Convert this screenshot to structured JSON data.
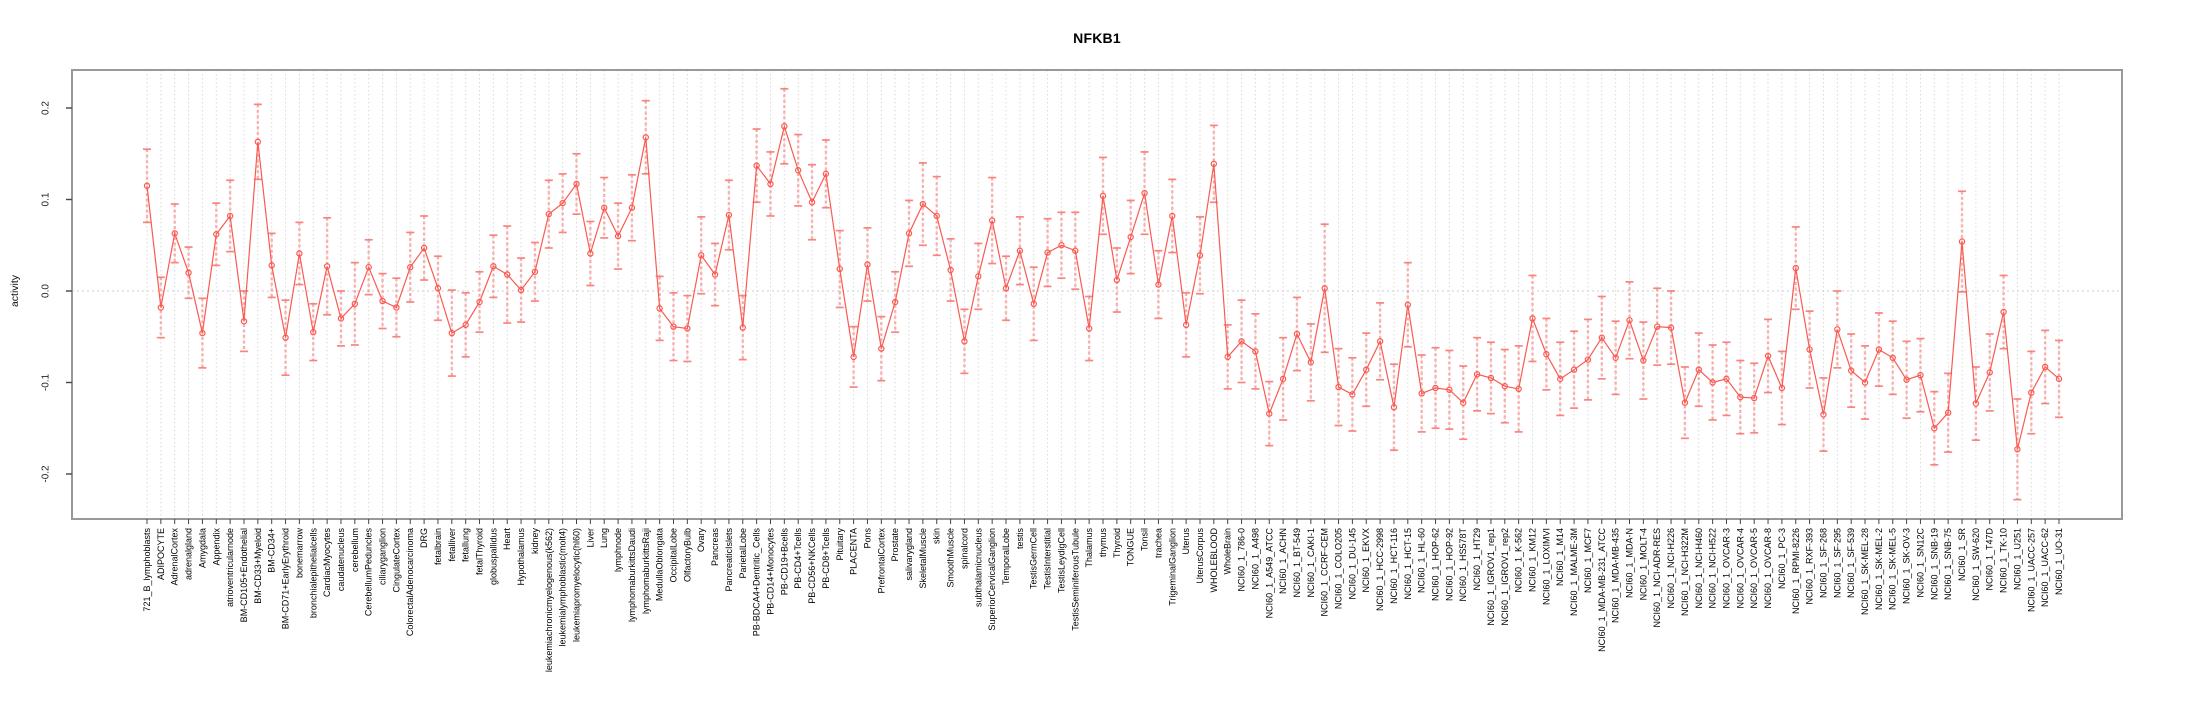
{
  "chart_data": {
    "type": "line",
    "title": "NFKB1",
    "ylabel": "activity",
    "xlabel": "",
    "legend": "none",
    "grid": "dashed vertical line per category; dotted horizontal line at 0",
    "ylim": [
      -0.25,
      0.235
    ],
    "yticks": [
      -0.2,
      -0.1,
      0.0,
      0.1,
      0.2
    ],
    "ytick_labels": [
      "-0.2",
      "-0.1",
      "0.0",
      "0.1",
      "0.2"
    ],
    "marker": "open-circle",
    "series_color": "#fa5a52",
    "errorbar_color": "#f87873",
    "gridline_color": "#d9d9d9",
    "box_color": "#999999",
    "categories": [
      "721_B_lymphoblasts",
      "ADIPOCYTE",
      "AdrenalCortex",
      "adrenalgland",
      "Amygdala",
      "Appendix",
      "atrioventricularnode",
      "BM-CD105+Endothelial",
      "BM-CD33+Myeloid",
      "BM-CD34+",
      "BM-CD71+EarlyErythroid",
      "bonemarrow",
      "bronchialepithelialcells",
      "CardiacMyocytes",
      "caudatenucleus",
      "cerebellum",
      "CerebellumPeduncles",
      "ciliaryganglion",
      "CingulateCortex",
      "ColorectalAdenocarcinoma",
      "DRG",
      "fetalbrain",
      "fetalliver",
      "fetallung",
      "fetalThyroid",
      "globuspallidus",
      "Heart",
      "Hypothalamus",
      "kidney",
      "leukemiachronicmyelogenous(k562)",
      "leukemialymphoblastic(molt4)",
      "leukemiapromyelocytic(hl60)",
      "Liver",
      "Lung",
      "lymphnode",
      "lymphomaburkittsDaudi",
      "lymphomaburkittsRaji",
      "MedullaOblongata",
      "OccipitalLobe",
      "OlfactoryBulb",
      "Ovary",
      "Pancreas",
      "PancreaticIslets",
      "ParietalLobe",
      "PB-BDCA4+Dentritic_Cells",
      "PB-CD14+Monocytes",
      "PB-CD19+Bcells",
      "PB-CD4+Tcells",
      "PB-CD56+NKCells",
      "PB-CD8+Tcells",
      "Pituitary",
      "PLACENTA",
      "Pons",
      "PrefrontalCortex",
      "Prostate",
      "salivarygland",
      "SkeletalMuscle",
      "skin",
      "SmoothMuscle",
      "spinalcord",
      "subthalamicnucleus",
      "SuperiorCervicalGanglion",
      "TemporalLobe",
      "testis",
      "TestisGermCell",
      "TestisInterstitial",
      "TestisLeydigCell",
      "TestisSeminiferousTubule",
      "Thalamus",
      "thymus",
      "Thyroid",
      "TONGUE",
      "Tonsil",
      "trachea",
      "TrigeminalGanglion",
      "Uterus",
      "UterusCorpus",
      "WHOLEBLOOD",
      "WholeBrain",
      "NCI60_1_786-0",
      "NCI60_1_A498",
      "NCI60_1_A549_ATCC",
      "NCI60_1_ACHN",
      "NCI60_1_BT-549",
      "NCI60_1_CAKI-1",
      "NCI60_1_CCRF-CEM",
      "NCI60_1_COLO205",
      "NCI60_1_DU-145",
      "NCI60_1_EKVX",
      "NCI60_1_HCC-2998",
      "NCI60_1_HCT-116",
      "NCI60_1_HCT-15",
      "NCI60_1_HL-60",
      "NCI60_1_HOP-62",
      "NCI60_1_HOP-92",
      "NCI60_1_HS578T",
      "NCI60_1_HT29",
      "NCI60_1_IGROV1_rep1",
      "NCI60_1_IGROV1_rep2",
      "NCI60_1_K-562",
      "NCI60_1_KM12",
      "NCI60_1_LOXIMVI",
      "NCI60_1_M14",
      "NCI60_1_MALME-3M",
      "NCI60_1_MCF7",
      "NCI60_1_MDA-MB-231_ATCC",
      "NCI60_1_MDA-MB-435",
      "NCI60_1_MDA-N",
      "NCI60_1_MOLT-4",
      "NCI60_1_NCI-ADR-RES",
      "NCI60_1_NCI-H226",
      "NCI60_1_NCI-H322M",
      "NCI60_1_NCI-H460",
      "NCI60_1_NCI-H522",
      "NCI60_1_OVCAR-3",
      "NCI60_1_OVCAR-4",
      "NCI60_1_OVCAR-5",
      "NCI60_1_OVCAR-8",
      "NCI60_1_PC-3",
      "NCI60_1_RPMI-8226",
      "NCI60_1_RXF-393",
      "NCI60_1_SF-268",
      "NCI60_1_SF-295",
      "NCI60_1_SF-539",
      "NCI60_1_SK-MEL-28",
      "NCI60_1_SK-MEL-2",
      "NCI60_1_SK-MEL-5",
      "NCI60_1_SK-OV-3",
      "NCI60_1_SN12C",
      "NCI60_1_SNB-19",
      "NCI60_1_SNB-75",
      "NCI60_1_SR",
      "NCI60_1_SW-620",
      "NCI60_1_T47D",
      "NCI60_1_TK-10",
      "NCI60_1_U251",
      "NCI60_1_UACC-257",
      "NCI60_1_UACC-62",
      "NCI60_1_UO-31"
    ],
    "values": [
      0.115,
      -0.018,
      0.063,
      0.02,
      -0.046,
      0.062,
      0.082,
      -0.033,
      0.163,
      0.028,
      -0.051,
      0.041,
      -0.045,
      0.027,
      -0.03,
      -0.014,
      0.026,
      -0.011,
      -0.018,
      0.026,
      0.047,
      0.003,
      -0.046,
      -0.037,
      -0.012,
      0.027,
      0.018,
      0.001,
      0.021,
      0.084,
      0.096,
      0.117,
      0.041,
      0.091,
      0.06,
      0.091,
      0.168,
      -0.019,
      -0.039,
      -0.041,
      0.039,
      0.018,
      0.083,
      -0.04,
      0.137,
      0.117,
      0.18,
      0.132,
      0.097,
      0.128,
      0.024,
      -0.072,
      0.029,
      -0.063,
      -0.012,
      0.063,
      0.095,
      0.082,
      0.023,
      -0.055,
      0.016,
      0.077,
      0.003,
      0.044,
      -0.014,
      0.042,
      0.05,
      0.044,
      -0.041,
      0.104,
      0.012,
      0.059,
      0.107,
      0.007,
      0.082,
      -0.037,
      0.039,
      0.139,
      -0.072,
      -0.055,
      -0.066,
      -0.134,
      -0.096,
      -0.047,
      -0.078,
      0.003,
      -0.105,
      -0.113,
      -0.086,
      -0.055,
      -0.127,
      -0.015,
      -0.112,
      -0.106,
      -0.108,
      -0.122,
      -0.091,
      -0.095,
      -0.104,
      -0.107,
      -0.03,
      -0.069,
      -0.096,
      -0.086,
      -0.075,
      -0.051,
      -0.073,
      -0.032,
      -0.076,
      -0.039,
      -0.04,
      -0.122,
      -0.086,
      -0.1,
      -0.096,
      -0.116,
      -0.117,
      -0.071,
      -0.106,
      0.025,
      -0.064,
      -0.135,
      -0.042,
      -0.087,
      -0.1,
      -0.064,
      -0.073,
      -0.097,
      -0.092,
      -0.15,
      -0.133,
      0.054,
      -0.123,
      -0.089,
      -0.023,
      -0.173,
      -0.111,
      -0.083,
      -0.096
    ],
    "se": [
      0.04,
      0.033,
      0.032,
      0.028,
      0.038,
      0.034,
      0.039,
      0.033,
      0.041,
      0.035,
      0.041,
      0.034,
      0.031,
      0.053,
      0.03,
      0.045,
      0.03,
      0.03,
      0.032,
      0.038,
      0.035,
      0.035,
      0.047,
      0.035,
      0.033,
      0.034,
      0.053,
      0.035,
      0.032,
      0.037,
      0.032,
      0.033,
      0.035,
      0.033,
      0.036,
      0.036,
      0.04,
      0.035,
      0.037,
      0.036,
      0.042,
      0.034,
      0.038,
      0.035,
      0.04,
      0.035,
      0.041,
      0.039,
      0.041,
      0.037,
      0.042,
      0.033,
      0.04,
      0.035,
      0.033,
      0.036,
      0.045,
      0.043,
      0.034,
      0.035,
      0.036,
      0.047,
      0.035,
      0.037,
      0.04,
      0.037,
      0.036,
      0.042,
      0.035,
      0.042,
      0.035,
      0.04,
      0.045,
      0.037,
      0.04,
      0.035,
      0.042,
      0.042,
      0.035,
      0.045,
      0.041,
      0.035,
      0.045,
      0.04,
      0.042,
      0.07,
      0.042,
      0.04,
      0.04,
      0.042,
      0.047,
      0.046,
      0.042,
      0.044,
      0.043,
      0.04,
      0.04,
      0.039,
      0.04,
      0.047,
      0.047,
      0.039,
      0.04,
      0.042,
      0.044,
      0.045,
      0.04,
      0.042,
      0.042,
      0.042,
      0.04,
      0.039,
      0.04,
      0.041,
      0.04,
      0.04,
      0.038,
      0.04,
      0.04,
      0.045,
      0.042,
      0.04,
      0.042,
      0.04,
      0.04,
      0.04,
      0.04,
      0.042,
      0.04,
      0.04,
      0.043,
      0.055,
      0.04,
      0.042,
      0.04,
      0.055,
      0.045,
      0.04,
      0.042
    ]
  }
}
